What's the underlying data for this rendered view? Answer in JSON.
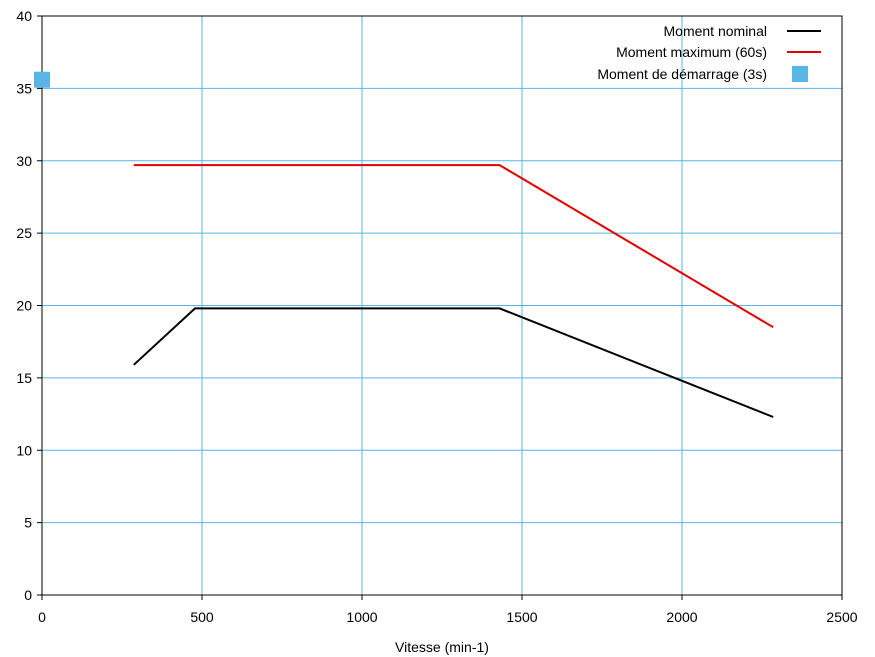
{
  "chart_data": {
    "type": "line",
    "title": "",
    "xlabel": "Vitesse (min-1)",
    "ylabel": "",
    "xlim": [
      0,
      2500
    ],
    "ylim": [
      0,
      40
    ],
    "x_ticks": [
      0,
      500,
      1000,
      1500,
      2000,
      2500
    ],
    "y_ticks": [
      0,
      5,
      10,
      15,
      20,
      25,
      30,
      35,
      40
    ],
    "x_tick_labels": [
      "0",
      "500",
      "1000",
      "1500",
      "2000",
      "2500"
    ],
    "y_tick_labels": [
      "0",
      "5",
      "10",
      "15",
      "20",
      "25",
      "30",
      "35",
      "40"
    ],
    "grid": true,
    "grid_color": "#5AB4E6",
    "legend_position": "top-right",
    "series": [
      {
        "name": "Moment nominal",
        "kind": "line",
        "color": "#000000",
        "points": [
          [
            287,
            15.9
          ],
          [
            478,
            19.8
          ],
          [
            1430,
            19.8
          ],
          [
            2285,
            12.3
          ]
        ]
      },
      {
        "name": "Moment maximum (60s)",
        "kind": "line",
        "color": "#E00000",
        "points": [
          [
            287,
            29.7
          ],
          [
            1430,
            29.7
          ],
          [
            2285,
            18.5
          ]
        ]
      },
      {
        "name": "Moment de démarrage (3s)",
        "kind": "marker",
        "color": "#5AB4E6",
        "points": [
          [
            0,
            35.6
          ]
        ]
      }
    ]
  }
}
